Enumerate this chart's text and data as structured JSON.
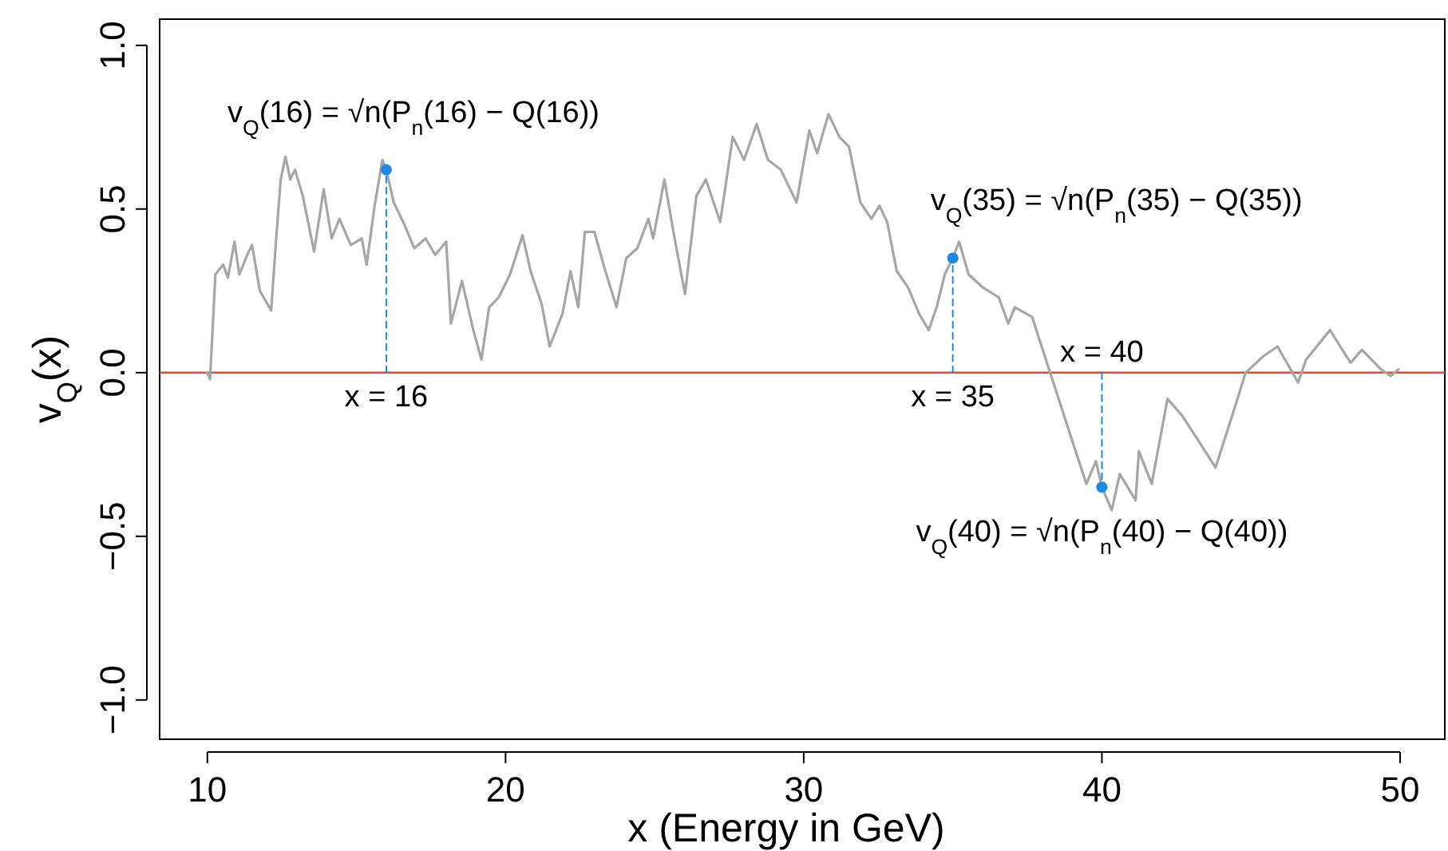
{
  "chart_data": {
    "type": "line",
    "xlabel": "x (Energy in GeV)",
    "ylabel": "v$_{Q}$(x)",
    "xlim": [
      8.4,
      51.5
    ],
    "ylim": [
      -1.12,
      1.08
    ],
    "xticks": [
      10,
      20,
      30,
      40,
      50
    ],
    "yticks": [
      {
        "value": -1,
        "label": "−1.0"
      },
      {
        "value": -0.5,
        "label": "−0.5"
      },
      {
        "value": 0,
        "label": "0.0"
      },
      {
        "value": 0.5,
        "label": "0.5"
      },
      {
        "value": 1,
        "label": "1.0"
      }
    ],
    "grid": false,
    "series": [
      {
        "color": "#a6a6a6",
        "x": [
          10.0,
          10.09,
          10.27,
          10.53,
          10.69,
          10.91,
          11.07,
          11.34,
          11.5,
          11.76,
          12.14,
          12.3,
          12.46,
          12.62,
          12.78,
          12.94,
          13.2,
          13.58,
          13.9,
          14.17,
          14.43,
          14.81,
          15.18,
          15.34,
          15.61,
          15.87,
          16,
          16.25,
          16.57,
          16.94,
          17.32,
          17.64,
          18.01,
          18.17,
          18.54,
          18.92,
          19.19,
          19.45,
          19.77,
          20.15,
          20.57,
          20.84,
          21.21,
          21.48,
          21.91,
          22.18,
          22.44,
          22.66,
          22.98,
          23.35,
          23.72,
          24.05,
          24.42,
          24.79,
          24.95,
          25.33,
          25.65,
          26.02,
          26.4,
          26.72,
          27.2,
          27.62,
          28.0,
          28.42,
          28.8,
          29.23,
          29.76,
          30.19,
          30.45,
          30.83,
          31.2,
          31.52,
          31.9,
          32.27,
          32.54,
          32.8,
          33.12,
          33.5,
          33.87,
          34.19,
          34.46,
          34.73,
          35,
          35.21,
          35.53,
          36.01,
          36.54,
          36.86,
          37.08,
          37.66,
          38.3,
          38.94,
          39.48,
          39.8,
          40,
          40.33,
          40.6,
          41.13,
          41.24,
          41.67,
          42.2,
          42.68,
          43.11,
          43.81,
          44.34,
          44.82,
          45.41,
          45.89,
          46.58,
          46.85,
          47.65,
          48.34,
          48.72,
          49.36,
          49.68,
          49.95
        ],
        "values": [
          0.0,
          -0.02,
          0.3,
          0.33,
          0.29,
          0.4,
          0.3,
          0.36,
          0.39,
          0.25,
          0.19,
          0.4,
          0.59,
          0.66,
          0.59,
          0.62,
          0.54,
          0.37,
          0.56,
          0.41,
          0.47,
          0.39,
          0.41,
          0.33,
          0.51,
          0.65,
          0.62,
          0.52,
          0.46,
          0.38,
          0.41,
          0.36,
          0.4,
          0.15,
          0.28,
          0.13,
          0.04,
          0.2,
          0.23,
          0.3,
          0.42,
          0.31,
          0.21,
          0.08,
          0.18,
          0.31,
          0.2,
          0.43,
          0.43,
          0.31,
          0.2,
          0.35,
          0.38,
          0.47,
          0.41,
          0.59,
          0.42,
          0.24,
          0.54,
          0.59,
          0.46,
          0.72,
          0.65,
          0.76,
          0.65,
          0.62,
          0.52,
          0.74,
          0.67,
          0.79,
          0.72,
          0.69,
          0.52,
          0.47,
          0.51,
          0.46,
          0.31,
          0.26,
          0.18,
          0.13,
          0.2,
          0.3,
          0.35,
          0.4,
          0.3,
          0.26,
          0.23,
          0.15,
          0.2,
          0.17,
          -0.01,
          -0.19,
          -0.34,
          -0.27,
          -0.35,
          -0.42,
          -0.31,
          -0.39,
          -0.24,
          -0.34,
          -0.08,
          -0.13,
          -0.19,
          -0.29,
          -0.14,
          0.0,
          0.05,
          0.08,
          -0.03,
          0.04,
          0.13,
          0.03,
          0.07,
          0.01,
          -0.01,
          0.01
        ]
      },
      {
        "type": "line",
        "color": "#1e88e5",
        "line_style": "dashed",
        "x": [
          16,
          16
        ],
        "values": [
          0,
          0.62
        ]
      },
      {
        "type": "line",
        "color": "#1e88e5",
        "line_style": "dashed",
        "x": [
          35,
          35
        ],
        "values": [
          0,
          0.35
        ]
      },
      {
        "type": "line",
        "color": "#1e88e5",
        "line_style": "dashed",
        "x": [
          40,
          40
        ],
        "values": [
          0,
          -0.35
        ]
      },
      {
        "type": "scatter",
        "color": "#1e88e5",
        "marker": "circle",
        "x": [
          16,
          35,
          40
        ],
        "values": [
          0.62,
          0.35,
          -0.35
        ]
      }
    ],
    "ref_lines": [
      {
        "axis": "y",
        "value": 0,
        "color": "#e8472c"
      }
    ],
    "annotations": [
      {
        "text": "v$_{Q}$(16) = √n(P$_{n}$(16) − Q(16))",
        "x": 16,
        "y": 0.62
      },
      {
        "text": "v$_{Q}$(35) = √n(P$_{n}$(35) − Q(35))",
        "x": 35,
        "y": 0.35
      },
      {
        "text": "v$_{Q}$(40) = √n(P$_{n}$(40) − Q(40))",
        "x": 40,
        "y": -0.35
      },
      {
        "text": "x = 16",
        "x": 16,
        "y": 0
      },
      {
        "text": "x = 35",
        "x": 35,
        "y": 0
      },
      {
        "text": "x = 40",
        "x": 40,
        "y": 0
      }
    ]
  }
}
